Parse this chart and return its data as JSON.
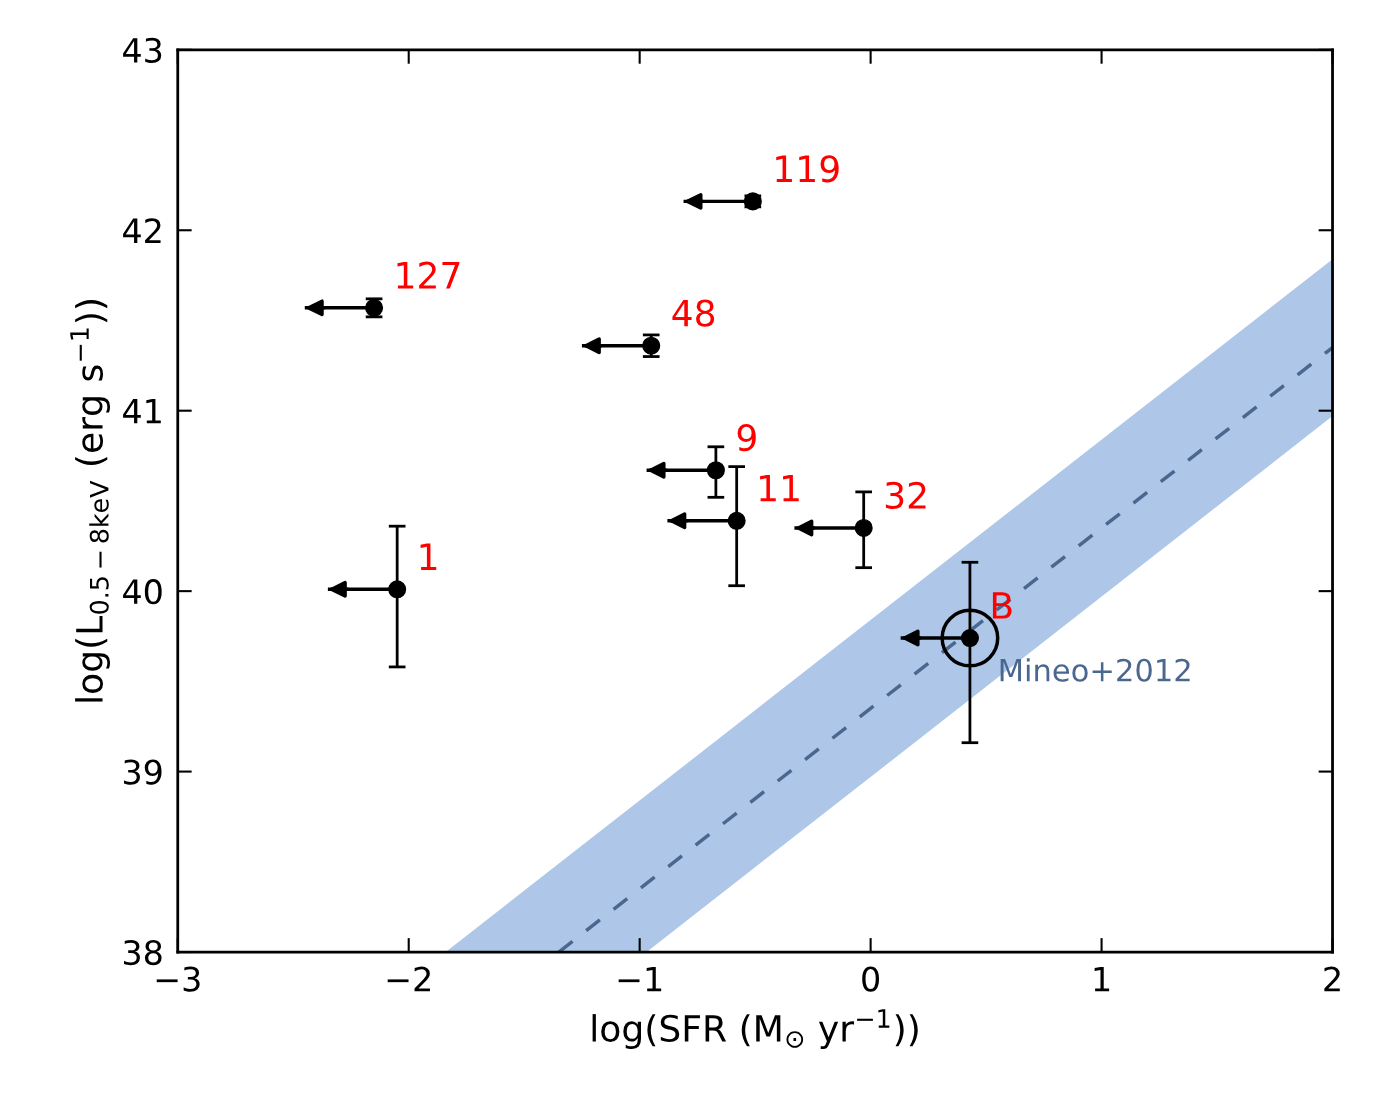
{
  "chart_data": {
    "type": "scatter",
    "xlabel": "log(SFR (M$_{⊙}$ yr$^{−1}$))",
    "ylabel": "log(L$_{0.5−8keV}$ (erg s$^{−1}$))",
    "xlim": [
      -3,
      2
    ],
    "ylim": [
      38,
      43
    ],
    "xticks": [
      -3,
      -2,
      -1,
      0,
      1,
      2
    ],
    "yticks": [
      38,
      39,
      40,
      41,
      42,
      43
    ],
    "grid": false,
    "marker": "circle",
    "series": [
      {
        "color": "#000000",
        "x": [
          -2.05,
          -2.15,
          -0.95,
          -0.51,
          -0.67,
          -0.58,
          -0.03
        ],
        "values": [
          40.01,
          41.57,
          41.36,
          42.16,
          40.67,
          40.39,
          40.35
        ],
        "errors": [
          [
            39.58,
            40.36
          ],
          [
            41.52,
            41.62
          ],
          [
            41.3,
            41.42
          ],
          [
            42.13,
            42.19
          ],
          [
            40.52,
            40.8
          ],
          [
            40.03,
            40.69
          ],
          [
            40.13,
            40.55
          ]
        ],
        "xerrors": [
          [
            -2.35,
            -2.05
          ],
          [
            -2.45,
            -2.15
          ],
          [
            -1.25,
            -0.95
          ],
          [
            -0.81,
            -0.51
          ],
          [
            -0.97,
            -0.67
          ],
          [
            -0.88,
            -0.58
          ],
          [
            -0.33,
            -0.03
          ]
        ]
      },
      {
        "color": "#000000",
        "x": [
          0.43
        ],
        "values": [
          39.74
        ],
        "errors": [
          [
            39.16,
            40.16
          ]
        ],
        "xerrors": [
          [
            0.13,
            0.43
          ]
        ]
      },
      {
        "type": "line",
        "name": "Mineo+2012",
        "color": "#4a6790",
        "marker": "none",
        "line_style": "dashed",
        "x": [
          -1.84,
          -1.35,
          -0.97,
          2
        ],
        "values": [
          null,
          38.0,
          38.38,
          41.35
        ],
        "lower": [
          38.0,
          38.0,
          38.0,
          40.97
        ],
        "upper": [
          38.0,
          38.49,
          38.87,
          41.84
        ]
      }
    ],
    "annotations": [
      {
        "text": "1",
        "x": -2.05,
        "y": 40.01
      },
      {
        "text": "127",
        "x": -2.15,
        "y": 41.57
      },
      {
        "text": "48",
        "x": -0.95,
        "y": 41.36
      },
      {
        "text": "119",
        "x": -0.51,
        "y": 42.16
      },
      {
        "text": "9",
        "x": -0.67,
        "y": 40.67
      },
      {
        "text": "11",
        "x": -0.58,
        "y": 40.39
      },
      {
        "text": "32",
        "x": -0.03,
        "y": 40.35
      },
      {
        "text": "B",
        "x": 0.43,
        "y": 39.74
      }
    ]
  }
}
